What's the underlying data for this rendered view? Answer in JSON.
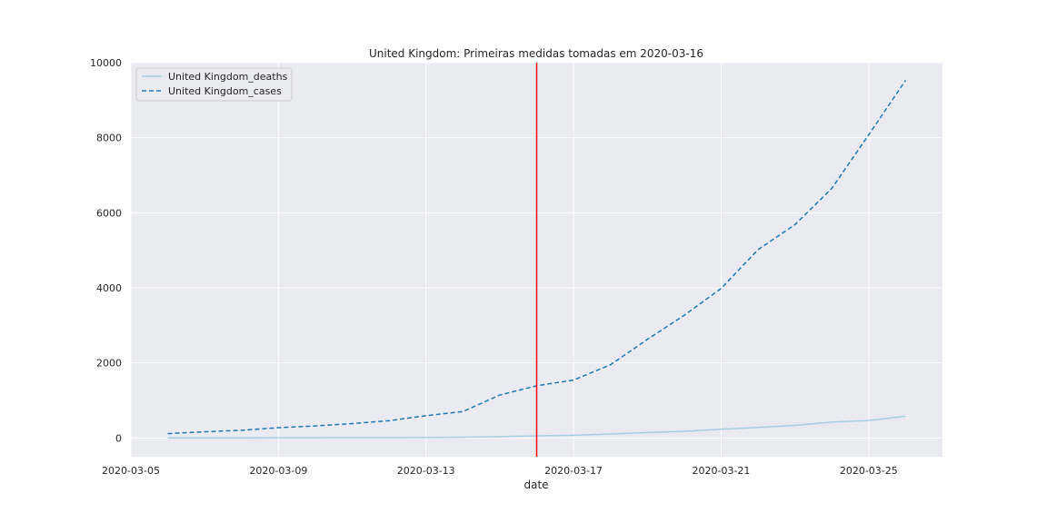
{
  "chart_data": {
    "type": "line",
    "title": "United Kingdom: Primeiras medidas tomadas em 2020-03-16",
    "xlabel": "date",
    "ylabel": "",
    "x_axis_type": "date",
    "xlim": [
      "2020-03-05",
      "2020-03-27"
    ],
    "ylim": [
      -500,
      10000
    ],
    "x_ticks": [
      "2020-03-05",
      "2020-03-09",
      "2020-03-13",
      "2020-03-17",
      "2020-03-21",
      "2020-03-25"
    ],
    "y_ticks": [
      0,
      2000,
      4000,
      6000,
      8000,
      10000
    ],
    "grid": true,
    "background": "#eaeaf2",
    "legend_position": "top-left",
    "x": [
      "2020-03-06",
      "2020-03-07",
      "2020-03-08",
      "2020-03-09",
      "2020-03-10",
      "2020-03-11",
      "2020-03-12",
      "2020-03-13",
      "2020-03-14",
      "2020-03-15",
      "2020-03-16",
      "2020-03-17",
      "2020-03-18",
      "2020-03-19",
      "2020-03-20",
      "2020-03-21",
      "2020-03-22",
      "2020-03-23",
      "2020-03-24",
      "2020-03-25",
      "2020-03-26"
    ],
    "series": [
      {
        "name": "United Kingdom_deaths",
        "color": "#a6cee3",
        "style": "solid",
        "values": [
          2,
          3,
          3,
          4,
          6,
          8,
          8,
          10,
          21,
          35,
          56,
          72,
          104,
          144,
          177,
          233,
          281,
          335,
          422,
          465,
          580
        ]
      },
      {
        "name": "United Kingdom_cases",
        "color": "#1f78b4",
        "style": "dashed",
        "values": [
          115,
          165,
          206,
          273,
          321,
          383,
          459,
          594,
          703,
          1144,
          1391,
          1543,
          1950,
          2626,
          3269,
          3983,
          5018,
          5683,
          6650,
          8077,
          9529
        ]
      }
    ],
    "vertical_line": {
      "x": "2020-03-16",
      "color": "#ff0000"
    }
  }
}
